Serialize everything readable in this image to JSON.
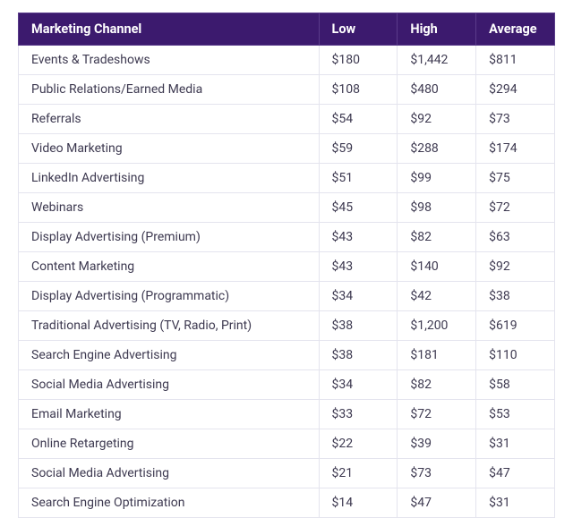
{
  "table": {
    "type": "table",
    "columns": [
      "Marketing Channel",
      "Low",
      "High",
      "Average"
    ],
    "column_widths_pct": [
      56,
      14.66,
      14.66,
      14.66
    ],
    "header_bg": "#3c1a6e",
    "header_fg": "#ffffff",
    "header_border": "#5a3b8a",
    "row_border": "#e4e4ee",
    "cell_bg": "#ffffff",
    "cell_fg": "#3d3950",
    "header_fontsize": 14.5,
    "body_fontsize": 14,
    "rows": [
      [
        "Events & Tradeshows",
        "$180",
        "$1,442",
        "$811"
      ],
      [
        "Public Relations/Earned Media",
        "$108",
        "$480",
        "$294"
      ],
      [
        "Referrals",
        "$54",
        "$92",
        "$73"
      ],
      [
        "Video Marketing",
        "$59",
        "$288",
        "$174"
      ],
      [
        "LinkedIn Advertising",
        "$51",
        "$99",
        "$75"
      ],
      [
        "Webinars",
        "$45",
        "$98",
        "$72"
      ],
      [
        "Display Advertising (Premium)",
        "$43",
        "$82",
        "$63"
      ],
      [
        "Content Marketing",
        "$43",
        "$140",
        "$92"
      ],
      [
        "Display Advertising (Programmatic)",
        "$34",
        "$42",
        "$38"
      ],
      [
        "Traditional Advertising (TV, Radio, Print)",
        "$38",
        "$1,200",
        "$619"
      ],
      [
        "Search Engine Advertising",
        "$38",
        "$181",
        "$110"
      ],
      [
        "Social Media Advertising",
        "$34",
        "$82",
        "$58"
      ],
      [
        "Email Marketing",
        "$33",
        "$72",
        "$53"
      ],
      [
        "Online Retargeting",
        "$22",
        "$39",
        "$31"
      ],
      [
        "Social Media Advertising",
        "$21",
        "$73",
        "$47"
      ],
      [
        "Search Engine Optimization",
        "$14",
        "$47",
        "$31"
      ]
    ]
  }
}
